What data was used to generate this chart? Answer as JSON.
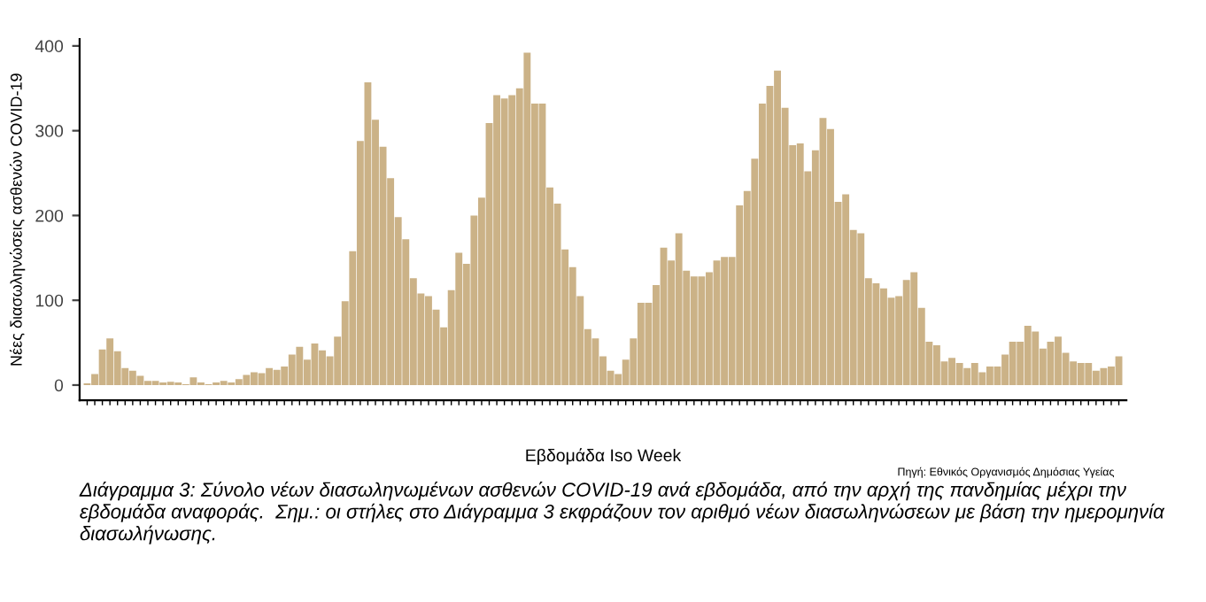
{
  "chart_data": {
    "type": "bar",
    "xlabel": "Εβδομάδα Iso Week",
    "ylabel": "Νέες διασωληνώσεις ασθενών COVID-19",
    "categories": [
      null,
      null,
      null,
      null,
      null,
      null,
      null,
      null,
      null,
      null,
      null,
      null,
      null,
      null,
      null,
      null,
      null,
      null,
      null,
      null,
      null,
      null,
      null,
      null,
      null,
      null,
      null,
      null,
      null,
      null,
      null,
      null,
      null,
      null,
      null,
      null,
      null,
      null,
      null,
      null,
      null,
      null,
      null,
      null,
      null,
      null,
      null,
      null,
      null,
      null,
      null,
      null,
      null,
      null,
      null,
      null,
      null,
      null,
      null,
      null,
      null,
      null,
      null,
      null,
      null,
      null,
      null,
      null,
      null,
      null,
      null,
      null,
      null,
      null,
      null,
      null,
      null,
      null,
      null,
      null,
      null,
      null,
      null,
      null,
      null,
      null,
      null,
      null,
      null,
      null,
      null,
      null,
      null,
      null,
      null,
      null,
      null,
      null,
      null,
      null,
      null,
      null,
      null,
      null,
      null,
      null,
      null,
      null,
      null,
      null,
      null,
      null,
      null,
      null,
      null,
      null,
      null,
      null,
      null,
      null,
      null,
      null,
      null,
      null,
      null,
      null,
      null,
      null,
      null,
      null,
      null,
      null,
      null,
      null,
      null,
      null,
      null
    ],
    "values": [
      2,
      13,
      42,
      55,
      40,
      20,
      17,
      11,
      5,
      5,
      3,
      4,
      3,
      1,
      9,
      3,
      1,
      3,
      5,
      3,
      7,
      12,
      15,
      14,
      20,
      18,
      22,
      36,
      45,
      30,
      49,
      41,
      34,
      57,
      99,
      158,
      288,
      357,
      313,
      281,
      244,
      198,
      172,
      126,
      108,
      105,
      89,
      68,
      112,
      156,
      143,
      200,
      221,
      309,
      342,
      338,
      342,
      350,
      392,
      332,
      332,
      233,
      214,
      160,
      139,
      105,
      66,
      55,
      34,
      17,
      13,
      30,
      55,
      97,
      97,
      118,
      162,
      147,
      179,
      135,
      128,
      128,
      133,
      147,
      151,
      151,
      212,
      229,
      267,
      332,
      353,
      371,
      327,
      283,
      285,
      252,
      277,
      315,
      302,
      216,
      225,
      183,
      179,
      126,
      120,
      114,
      103,
      105,
      124,
      133,
      91,
      51,
      47,
      28,
      32,
      26,
      20,
      26,
      15,
      22,
      22,
      36,
      51,
      51,
      70,
      63,
      43,
      51,
      57,
      38,
      28,
      26,
      26,
      17,
      20,
      22,
      34
    ],
    "color": "#cbb287",
    "ylim": [
      -18,
      408
    ],
    "yticks": [
      0,
      100,
      200,
      300,
      400
    ],
    "grid": false,
    "legend": false,
    "annotations": [
      "Πηγή: Εθνικός Οργανισμός Δημόσιας Υγείας",
      "Διάγραμμα 3: Σύνολο νέων διασωληνωμένων ασθενών COVID-19 ανά εβδομάδα, από την αρχή της πανδημίας μέχρι την εβδομάδα αναφοράς.  Σημ.: οι στήλες στο Διάγραμμα 3 εκφράζουν τον αριθμό νέων διασωληνώσεων με βάση την ημερομηνία διασωλήνωσης."
    ]
  }
}
